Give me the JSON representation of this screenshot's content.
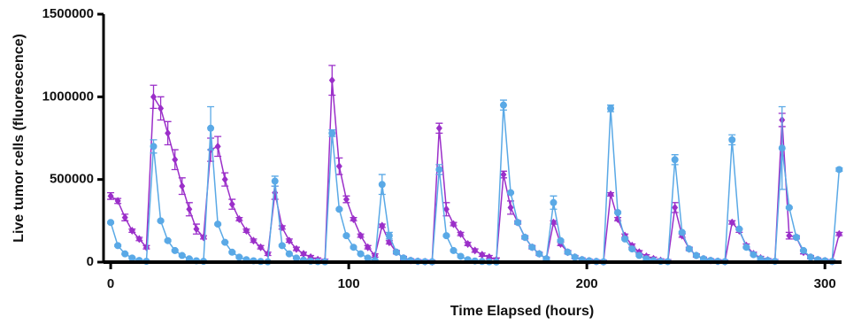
{
  "chart_data": {
    "type": "line",
    "xlabel": "Time Elapsed (hours)",
    "ylabel": "Live tumor cells (fluorescence)",
    "xlim": [
      -3,
      307
    ],
    "xticks": [
      0,
      100,
      200,
      300
    ],
    "ylim": [
      0,
      1500000
    ],
    "yticks": [
      0,
      500000,
      1000000,
      1500000
    ],
    "x": [
      0,
      3,
      6,
      9,
      12,
      15,
      18,
      21,
      24,
      27,
      30,
      33,
      36,
      39,
      42,
      45,
      48,
      51,
      54,
      57,
      60,
      63,
      66,
      69,
      72,
      75,
      78,
      81,
      84,
      87,
      90,
      93,
      96,
      99,
      102,
      105,
      108,
      111,
      114,
      117,
      120,
      123,
      126,
      129,
      132,
      135,
      138,
      141,
      144,
      147,
      150,
      153,
      156,
      159,
      162,
      165,
      168,
      171,
      174,
      177,
      180,
      183,
      186,
      189,
      192,
      195,
      198,
      201,
      204,
      207,
      210,
      213,
      216,
      219,
      222,
      225,
      228,
      231,
      234,
      237,
      240,
      243,
      246,
      249,
      252,
      255,
      258,
      261,
      264,
      267,
      270,
      273,
      276,
      279,
      282,
      285,
      288,
      291,
      294,
      297,
      300,
      303,
      306
    ],
    "series": [
      {
        "color": "#9b2fc9",
        "marker": "diamond",
        "values": [
          400000,
          370000,
          270000,
          190000,
          140000,
          90000,
          1000000,
          930000,
          780000,
          620000,
          460000,
          320000,
          200000,
          150000,
          680000,
          700000,
          500000,
          350000,
          260000,
          190000,
          130000,
          90000,
          50000,
          420000,
          210000,
          130000,
          80000,
          50000,
          30000,
          15000,
          8000,
          1100000,
          580000,
          380000,
          260000,
          160000,
          90000,
          40000,
          220000,
          120000,
          60000,
          25000,
          10000,
          5000,
          3000,
          2000,
          810000,
          320000,
          230000,
          170000,
          110000,
          70000,
          45000,
          30000,
          15000,
          530000,
          330000,
          240000,
          150000,
          90000,
          50000,
          20000,
          240000,
          110000,
          60000,
          30000,
          15000,
          8000,
          4000,
          2000,
          410000,
          260000,
          160000,
          100000,
          60000,
          35000,
          20000,
          10000,
          5000,
          330000,
          160000,
          80000,
          40000,
          20000,
          10000,
          5000,
          3000,
          240000,
          190000,
          100000,
          50000,
          25000,
          12000,
          6000,
          860000,
          160000,
          150000,
          60000,
          30000,
          15000,
          8000,
          4000,
          170000
        ],
        "errors": [
          20000,
          15000,
          20000,
          10000,
          10000,
          10000,
          70000,
          70000,
          70000,
          60000,
          50000,
          40000,
          30000,
          10000,
          70000,
          60000,
          40000,
          30000,
          10000,
          10000,
          10000,
          10000,
          10000,
          40000,
          10000,
          10000,
          10000,
          10000,
          10000,
          10000,
          10000,
          90000,
          50000,
          20000,
          10000,
          10000,
          10000,
          10000,
          10000,
          10000,
          10000,
          10000,
          10000,
          10000,
          10000,
          10000,
          30000,
          40000,
          10000,
          10000,
          10000,
          10000,
          10000,
          10000,
          10000,
          20000,
          40000,
          10000,
          10000,
          10000,
          10000,
          10000,
          10000,
          10000,
          10000,
          10000,
          10000,
          10000,
          10000,
          10000,
          10000,
          10000,
          10000,
          10000,
          10000,
          10000,
          10000,
          10000,
          10000,
          30000,
          10000,
          10000,
          10000,
          10000,
          10000,
          10000,
          10000,
          10000,
          10000,
          10000,
          10000,
          10000,
          10000,
          10000,
          40000,
          20000,
          10000,
          10000,
          10000,
          10000,
          10000,
          10000,
          10000
        ]
      },
      {
        "color": "#5aa9e6",
        "marker": "circle",
        "values": [
          240000,
          100000,
          50000,
          25000,
          10000,
          5000,
          700000,
          250000,
          130000,
          70000,
          40000,
          20000,
          8000,
          5000,
          810000,
          230000,
          120000,
          60000,
          30000,
          15000,
          8000,
          4000,
          2000,
          490000,
          100000,
          50000,
          25000,
          12000,
          6000,
          3000,
          2000,
          780000,
          320000,
          160000,
          90000,
          50000,
          25000,
          10000,
          470000,
          160000,
          60000,
          25000,
          10000,
          5000,
          3000,
          2000,
          560000,
          160000,
          70000,
          35000,
          15000,
          7000,
          4000,
          2000,
          1000,
          950000,
          420000,
          240000,
          150000,
          90000,
          50000,
          20000,
          360000,
          130000,
          60000,
          30000,
          15000,
          8000,
          4000,
          2000,
          930000,
          300000,
          140000,
          80000,
          40000,
          20000,
          10000,
          5000,
          3000,
          620000,
          180000,
          80000,
          40000,
          20000,
          10000,
          5000,
          3000,
          740000,
          200000,
          90000,
          45000,
          20000,
          10000,
          5000,
          690000,
          330000,
          150000,
          70000,
          30000,
          15000,
          8000,
          4000,
          560000
        ],
        "errors": [
          5000,
          5000,
          5000,
          5000,
          5000,
          5000,
          40000,
          5000,
          5000,
          5000,
          5000,
          5000,
          5000,
          5000,
          130000,
          5000,
          5000,
          5000,
          5000,
          5000,
          5000,
          5000,
          5000,
          30000,
          5000,
          5000,
          5000,
          5000,
          5000,
          5000,
          5000,
          20000,
          5000,
          5000,
          5000,
          5000,
          5000,
          5000,
          60000,
          20000,
          5000,
          5000,
          5000,
          5000,
          5000,
          5000,
          30000,
          5000,
          5000,
          5000,
          5000,
          5000,
          5000,
          5000,
          5000,
          30000,
          5000,
          5000,
          5000,
          5000,
          5000,
          5000,
          40000,
          5000,
          5000,
          5000,
          5000,
          5000,
          5000,
          5000,
          20000,
          5000,
          5000,
          5000,
          5000,
          5000,
          5000,
          5000,
          5000,
          30000,
          5000,
          5000,
          5000,
          5000,
          5000,
          5000,
          5000,
          30000,
          5000,
          5000,
          5000,
          5000,
          5000,
          5000,
          250000,
          5000,
          5000,
          5000,
          5000,
          5000,
          5000,
          5000,
          10000
        ]
      }
    ]
  }
}
